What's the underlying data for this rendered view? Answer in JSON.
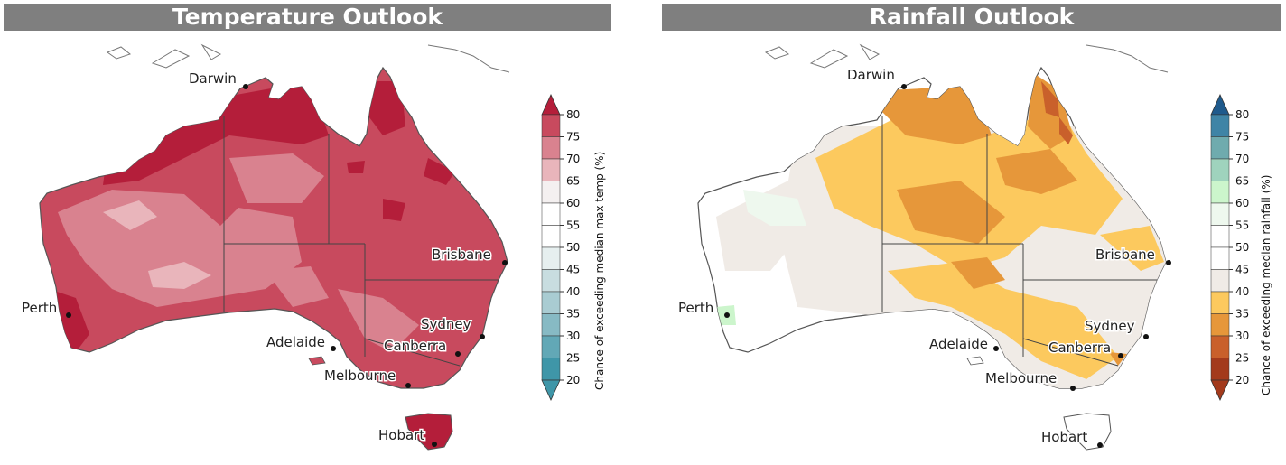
{
  "temperature": {
    "title": "Temperature Outlook",
    "colorbar_label": "Chance of exceeding median max temp (%)",
    "ticks": [
      "80",
      "75",
      "70",
      "65",
      "60",
      "55",
      "50",
      "45",
      "40",
      "35",
      "30",
      "25",
      "20"
    ],
    "colors": [
      "#b41e3a",
      "#c84a5e",
      "#d9828f",
      "#e9b5bb",
      "#f4f0f0",
      "#ffffff",
      "#ffffff",
      "#e6efef",
      "#c8dde0",
      "#a9ccd2",
      "#87bac4",
      "#62a8b6",
      "#3f96a8"
    ],
    "cities": {
      "darwin": "Darwin",
      "perth": "Perth",
      "brisbane": "Brisbane",
      "sydney": "Sydney",
      "adelaide": "Adelaide",
      "canberra": "Canberra",
      "melbourne": "Melbourne",
      "hobart": "Hobart"
    }
  },
  "rainfall": {
    "title": "Rainfall Outlook",
    "colorbar_label": "Chance of exceeding median rainfall (%)",
    "ticks": [
      "80",
      "75",
      "70",
      "65",
      "60",
      "55",
      "50",
      "45",
      "40",
      "35",
      "30",
      "25",
      "20"
    ],
    "colors": [
      "#1f5a8c",
      "#3f84a6",
      "#6fabae",
      "#9fd3bd",
      "#ccf5cc",
      "#eef8ee",
      "#ffffff",
      "#ffffff",
      "#f0ebe6",
      "#fcc95e",
      "#e6973a",
      "#c9602b",
      "#a33a1c"
    ],
    "cities": {
      "darwin": "Darwin",
      "perth": "Perth",
      "brisbane": "Brisbane",
      "sydney": "Sydney",
      "adelaide": "Adelaide",
      "canberra": "Canberra",
      "melbourne": "Melbourne",
      "hobart": "Hobart"
    }
  }
}
